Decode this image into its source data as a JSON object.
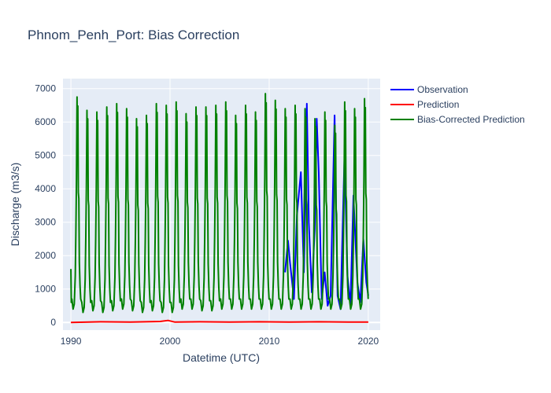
{
  "chart_data": {
    "type": "line",
    "title": "Phnom_Penh_Port: Bias Correction",
    "xlabel": "Datetime (UTC)",
    "ylabel": "Discharge (m3/s)",
    "xlim": [
      1989.2,
      2021.2
    ],
    "ylim": [
      -230,
      7300
    ],
    "x_ticks": [
      1990,
      2000,
      2010,
      2020
    ],
    "x_tick_labels": [
      "1990",
      "2000",
      "2010",
      "2020"
    ],
    "y_ticks": [
      0,
      1000,
      2000,
      3000,
      4000,
      5000,
      6000,
      7000
    ],
    "y_tick_labels": [
      "0",
      "1000",
      "2000",
      "3000",
      "4000",
      "5000",
      "6000",
      "7000"
    ],
    "grid": true,
    "legend_position": "right",
    "series": [
      {
        "name": "Observation",
        "color": "#0000ff",
        "x": [
          2011.6,
          2011.9,
          2012.1,
          2012.5,
          2012.8,
          2013.2,
          2013.5,
          2013.7,
          2013.8,
          2014.0,
          2014.3,
          2014.6,
          2014.8,
          2015.0,
          2015.3,
          2015.6,
          2015.9,
          2016.2,
          2016.6,
          2016.9,
          2017.2,
          2017.6,
          2017.9,
          2018.2,
          2018.5,
          2018.9,
          2019.2,
          2019.5,
          2019.8,
          2020.0
        ],
        "y": [
          1500,
          2450,
          1800,
          700,
          3200,
          4500,
          1500,
          4000,
          6550,
          3000,
          900,
          2800,
          6100,
          4500,
          700,
          1500,
          500,
          800,
          6200,
          800,
          400,
          5000,
          1400,
          500,
          3800,
          1200,
          600,
          2500,
          1200,
          800
        ]
      },
      {
        "name": "Prediction",
        "color": "#ff0000",
        "x": [
          1990.0,
          1993.0,
          1996.0,
          1999.0,
          1999.8,
          2000.5,
          2003.0,
          2006.0,
          2009.0,
          2012.0,
          2015.0,
          2018.0,
          2020.0
        ],
        "y": [
          0,
          20,
          10,
          30,
          60,
          10,
          20,
          10,
          20,
          10,
          20,
          10,
          10
        ]
      },
      {
        "name": "Bias-Corrected Prediction",
        "color": "#008000",
        "years": [
          1990,
          1991,
          1992,
          1993,
          1994,
          1995,
          1996,
          1997,
          1998,
          1999,
          2000,
          2001,
          2002,
          2003,
          2004,
          2005,
          2006,
          2007,
          2008,
          2009,
          2010,
          2011,
          2012,
          2013,
          2014,
          2015,
          2016,
          2017,
          2018,
          2019
        ],
        "annual_peak": [
          6750,
          6350,
          6300,
          6450,
          6550,
          6400,
          6100,
          6200,
          6550,
          6500,
          6600,
          6250,
          6450,
          6450,
          6500,
          6600,
          6200,
          6500,
          6300,
          6850,
          6650,
          6400,
          6500,
          6400,
          6100,
          6300,
          5900,
          6600,
          6400,
          6700
        ],
        "annual_low": [
          400,
          300,
          350,
          300,
          350,
          400,
          350,
          300,
          350,
          300,
          300,
          400,
          400,
          350,
          350,
          400,
          400,
          400,
          400,
          400,
          400,
          400,
          400,
          400,
          400,
          400,
          400,
          400,
          400,
          400
        ],
        "start_value": 1600
      }
    ]
  }
}
